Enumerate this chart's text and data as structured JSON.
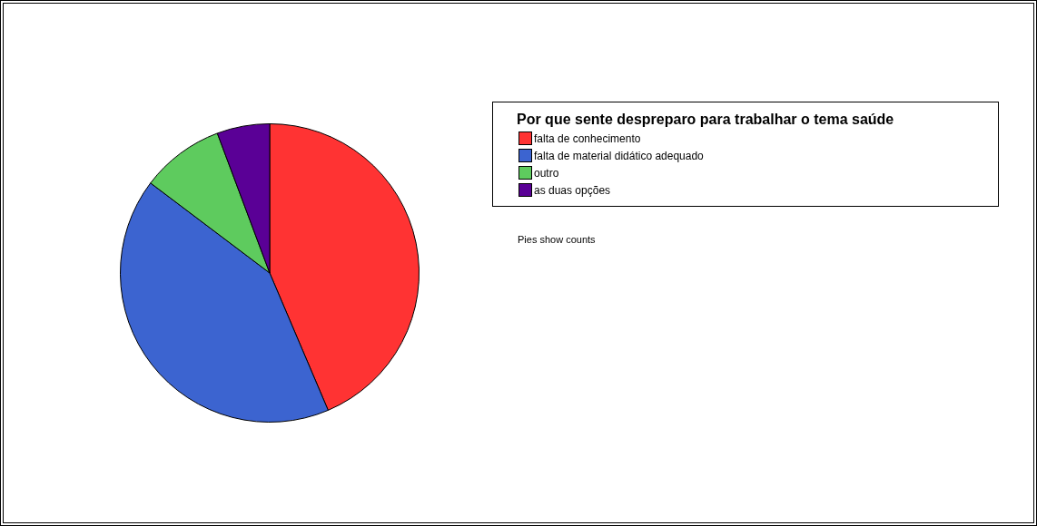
{
  "chart_data": {
    "type": "pie",
    "legend_title": "Por que sente despreparo para trabalhar o tema saúde",
    "categories": [
      "falta de conhecimento",
      "falta de material didático adequado",
      "outro",
      "as duas opções"
    ],
    "values": [
      43.6,
      41.7,
      9.0,
      5.7
    ],
    "colors": [
      "#ff3333",
      "#3c64d0",
      "#5ecb5e",
      "#5a0096"
    ],
    "legend": "top right",
    "annotations": [
      "Pies show counts"
    ]
  }
}
